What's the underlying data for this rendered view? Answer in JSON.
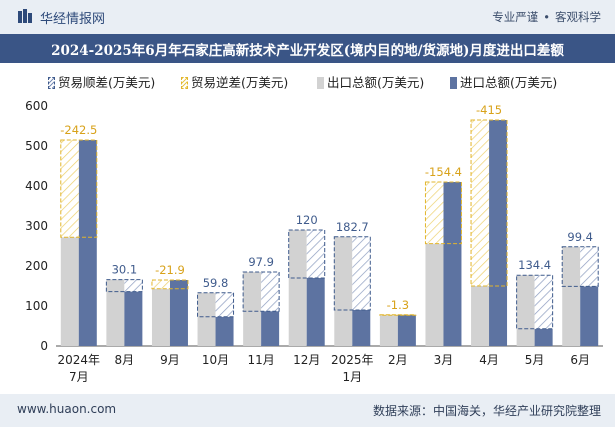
{
  "header": {
    "brand": "华经情报网",
    "tag1": "专业严谨",
    "tag2": "客观科学"
  },
  "title": "2024-2025年6月年石家庄高新技术产业开发区(境内目的地/货源地)月度进出口差额",
  "legend": {
    "surplus": "贸易顺差(万美元)",
    "deficit": "贸易逆差(万美元)",
    "export": "出口总额(万美元)",
    "import": "进口总额(万美元)"
  },
  "footer": {
    "left": "www.huaon.com",
    "right": "数据来源：中国海关，华经产业研究院整理"
  },
  "colors": {
    "export": "#d2d2d2",
    "import": "#5d73a1",
    "surplus": "#3f5b8c",
    "deficit": "#e2b52c",
    "label": "#3f5b8c",
    "deficit_label": "#d8a21a"
  },
  "chart_data": {
    "type": "bar",
    "categories": [
      "2024年7月",
      "8月",
      "9月",
      "10月",
      "11月",
      "12月",
      "2025年1月",
      "2月",
      "3月",
      "4月",
      "5月",
      "6月"
    ],
    "series": [
      {
        "name": "出口总额(万美元)",
        "values": [
          272,
          166,
          143,
          133,
          185,
          290,
          273,
          77,
          256,
          150,
          177,
          248
        ]
      },
      {
        "name": "进口总额(万美元)",
        "values": [
          515,
          136,
          165,
          73,
          87,
          170,
          90,
          78,
          410,
          565,
          43,
          149
        ]
      }
    ],
    "balance_labels": [
      "-242.5",
      "30.1",
      "-21.9",
      "59.8",
      "97.9",
      "120",
      "182.7",
      "-1.3",
      "-154.4",
      "-415",
      "134.4",
      "99.4"
    ],
    "ylim": [
      0,
      600
    ],
    "yticks": [
      0,
      100,
      200,
      300,
      400,
      500,
      600
    ],
    "grid": false,
    "legend_position": "top"
  }
}
